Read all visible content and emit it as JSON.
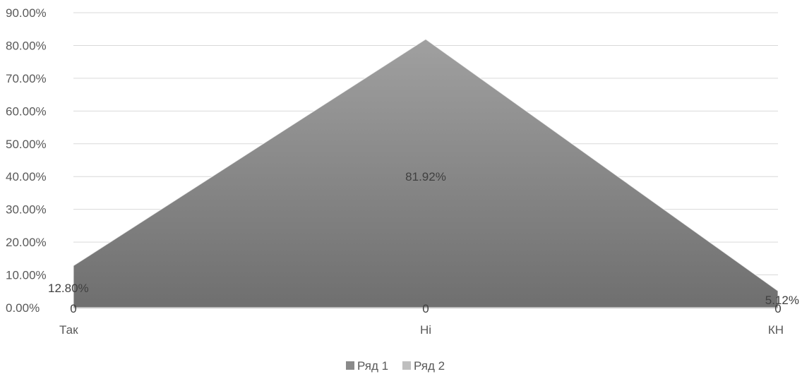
{
  "chart_data": {
    "type": "area",
    "categories": [
      "Так",
      "Ні",
      "КН"
    ],
    "series": [
      {
        "name": "Ряд 1",
        "values": [
          12.8,
          81.92,
          5.12
        ],
        "labels": [
          "12.80%",
          "81.92%",
          "5.12%"
        ],
        "color": "#8a8a8a"
      },
      {
        "name": "Ряд 2",
        "values": [
          0,
          0,
          0
        ],
        "labels": [
          "0",
          "0",
          "0"
        ],
        "color": "#bfbfbf"
      }
    ],
    "y_ticks": [
      "0.00%",
      "10.00%",
      "20.00%",
      "30.00%",
      "40.00%",
      "50.00%",
      "60.00%",
      "70.00%",
      "80.00%",
      "90.00%"
    ],
    "ylim": [
      0,
      90
    ],
    "grid": true,
    "legend_position": "bottom",
    "gridline_color": "#d9d9d9"
  }
}
